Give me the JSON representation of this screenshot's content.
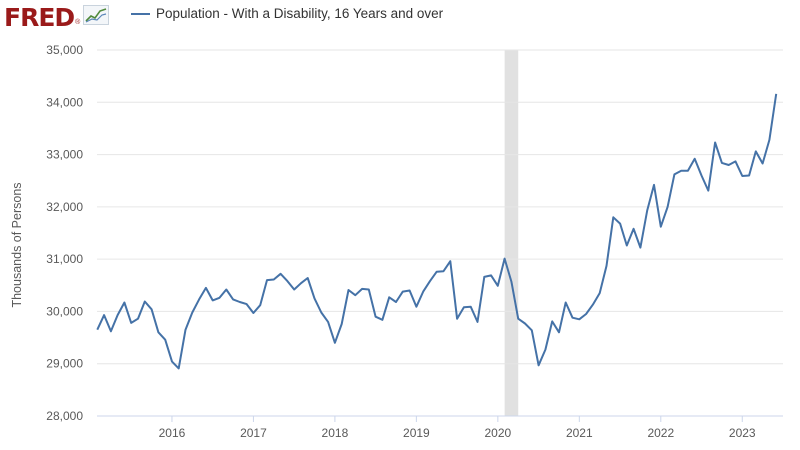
{
  "header": {
    "logo_text": "FRED",
    "logo_mark": "®",
    "logo_icon": "line-graph-icon",
    "legend_label": "Population - With a Disability, 16 Years and over",
    "legend_color": "#4572a7"
  },
  "chart_data": {
    "type": "line",
    "title": "",
    "xlabel": "",
    "ylabel": "Thousands of Persons",
    "ylim": [
      28000,
      35000
    ],
    "xlim": [
      2015.08,
      2023.5
    ],
    "y_ticks": [
      28000,
      29000,
      30000,
      31000,
      32000,
      33000,
      34000,
      35000
    ],
    "y_tick_labels": [
      "28,000",
      "29,000",
      "30,000",
      "31,000",
      "32,000",
      "33,000",
      "34,000",
      "35,000"
    ],
    "x_ticks": [
      2016,
      2017,
      2018,
      2019,
      2020,
      2021,
      2022,
      2023
    ],
    "x_tick_labels": [
      "2016",
      "2017",
      "2018",
      "2019",
      "2020",
      "2021",
      "2022",
      "2023"
    ],
    "grid": true,
    "recession_shading": {
      "start": "2020-02",
      "end": "2020-04",
      "color": "#e1e1e1"
    },
    "series": [
      {
        "name": "Population - With a Disability, 16 Years and over",
        "color": "#4572a7",
        "x": [
          "2015-02",
          "2015-03",
          "2015-04",
          "2015-05",
          "2015-06",
          "2015-07",
          "2015-08",
          "2015-09",
          "2015-10",
          "2015-11",
          "2015-12",
          "2016-01",
          "2016-02",
          "2016-03",
          "2016-04",
          "2016-05",
          "2016-06",
          "2016-07",
          "2016-08",
          "2016-09",
          "2016-10",
          "2016-11",
          "2016-12",
          "2017-01",
          "2017-02",
          "2017-03",
          "2017-04",
          "2017-05",
          "2017-06",
          "2017-07",
          "2017-08",
          "2017-09",
          "2017-10",
          "2017-11",
          "2017-12",
          "2018-01",
          "2018-02",
          "2018-03",
          "2018-04",
          "2018-05",
          "2018-06",
          "2018-07",
          "2018-08",
          "2018-09",
          "2018-10",
          "2018-11",
          "2018-12",
          "2019-01",
          "2019-02",
          "2019-03",
          "2019-04",
          "2019-05",
          "2019-06",
          "2019-07",
          "2019-08",
          "2019-09",
          "2019-10",
          "2019-11",
          "2019-12",
          "2020-01",
          "2020-02",
          "2020-03",
          "2020-04",
          "2020-05",
          "2020-06",
          "2020-07",
          "2020-08",
          "2020-09",
          "2020-10",
          "2020-11",
          "2020-12",
          "2021-01",
          "2021-02",
          "2021-03",
          "2021-04",
          "2021-05",
          "2021-06",
          "2021-07",
          "2021-08",
          "2021-09",
          "2021-10",
          "2021-11",
          "2021-12",
          "2022-01",
          "2022-02",
          "2022-03",
          "2022-04",
          "2022-05",
          "2022-06",
          "2022-07",
          "2022-08",
          "2022-09",
          "2022-10",
          "2022-11",
          "2022-12",
          "2023-01",
          "2023-02",
          "2023-03",
          "2023-04",
          "2023-05",
          "2023-06"
        ],
        "values": [
          29650,
          29930,
          29620,
          29930,
          30170,
          29780,
          29860,
          30190,
          30040,
          29600,
          29460,
          29040,
          28910,
          29650,
          29980,
          30230,
          30450,
          30210,
          30260,
          30420,
          30230,
          30180,
          30140,
          29970,
          30120,
          30600,
          30610,
          30720,
          30580,
          30420,
          30540,
          30640,
          30250,
          29980,
          29800,
          29400,
          29760,
          30410,
          30310,
          30430,
          30420,
          29900,
          29840,
          30270,
          30180,
          30380,
          30400,
          30090,
          30380,
          30580,
          30760,
          30770,
          30960,
          29860,
          30080,
          30090,
          29800,
          30660,
          30690,
          30490,
          31010,
          30570,
          29860,
          29770,
          29640,
          28970,
          29270,
          29810,
          29600,
          30170,
          29880,
          29850,
          29950,
          30130,
          30350,
          30870,
          31800,
          31680,
          31260,
          31580,
          31220,
          31930,
          32420,
          31620,
          32000,
          32620,
          32690,
          32690,
          32920,
          32600,
          32310,
          33230,
          32840,
          32800,
          32870,
          32590,
          32600,
          33060,
          32830,
          33280,
          34160
        ]
      }
    ]
  }
}
